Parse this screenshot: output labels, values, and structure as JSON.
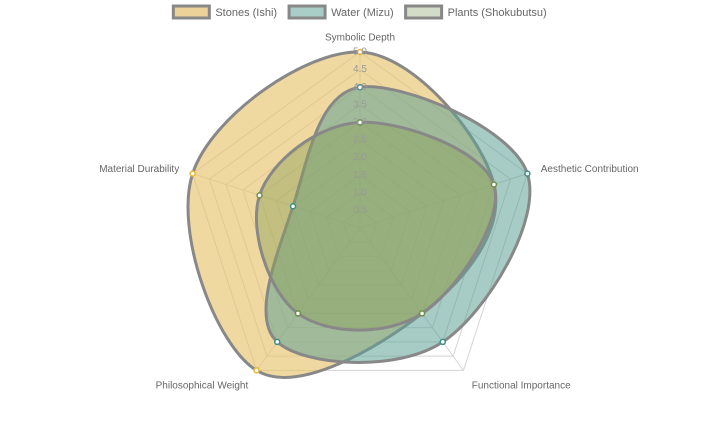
{
  "chart_data": {
    "type": "radar",
    "categories": [
      "Symbolic Depth",
      "Aesthetic Contribution",
      "Functional Importance",
      "Philosophical Weight",
      "Material Durability"
    ],
    "series": [
      {
        "name": "Stones (Ishi)",
        "color": "#e6b83a",
        "values": [
          5,
          4,
          3,
          5,
          5
        ]
      },
      {
        "name": "Water (Mizu)",
        "color": "#3e8e84",
        "values": [
          4,
          5,
          4,
          4,
          2
        ]
      },
      {
        "name": "Plants (Shokubutsu)",
        "color": "#6b8e4e",
        "values": [
          3,
          4,
          3,
          3,
          3
        ]
      }
    ],
    "rlim": [
      0,
      5
    ],
    "rticks": [
      0.5,
      {
        "value": 1,
        "label": "1.0"
      },
      1.5,
      {
        "value": 2,
        "label": "2.0"
      },
      2.5,
      {
        "value": 3,
        "label": "3.0"
      },
      3.5,
      {
        "value": 4,
        "label": "4.0"
      },
      4.5,
      {
        "value": 5,
        "label": "5.0"
      }
    ],
    "grid": true,
    "legend": "top"
  }
}
